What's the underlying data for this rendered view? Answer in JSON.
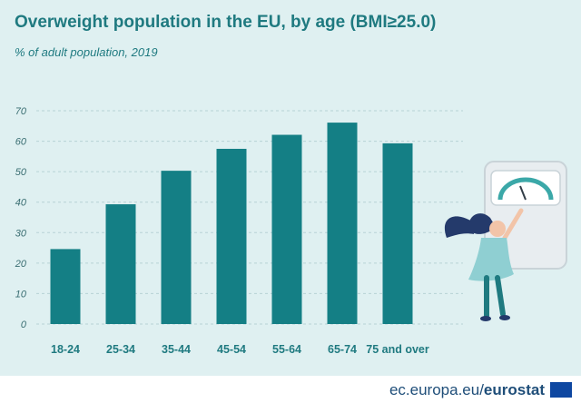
{
  "header": {
    "title": "Overweight population in the EU, by age (BMI≥25.0)",
    "subtitle": "% of adult population, 2019"
  },
  "chart_data": {
    "type": "bar",
    "title": "Overweight population in the EU, by age (BMI≥25.0)",
    "subtitle": "% of adult population, 2019",
    "xlabel": "",
    "ylabel": "",
    "categories": [
      "18-24",
      "25-34",
      "35-44",
      "45-54",
      "55-64",
      "65-74",
      "75 and over"
    ],
    "values": [
      24.6,
      39.3,
      50.3,
      57.5,
      62.1,
      66.1,
      59.3
    ],
    "ylim": [
      0,
      70
    ],
    "yticks": [
      "0",
      "10",
      "20",
      "30",
      "40",
      "50",
      "60",
      "70"
    ],
    "grid": "dashed-horizontal",
    "legend": "none",
    "bar_color": "#147f85"
  },
  "footer": {
    "site": "ec.europa.eu/",
    "brand": "eurostat"
  },
  "colors": {
    "background": "#dff0f1",
    "accent": "#1f7a80",
    "bar": "#147f85"
  },
  "illustration": {
    "subject": "woman-reading-weighing-scale",
    "icon": "eu-flag-icon"
  }
}
